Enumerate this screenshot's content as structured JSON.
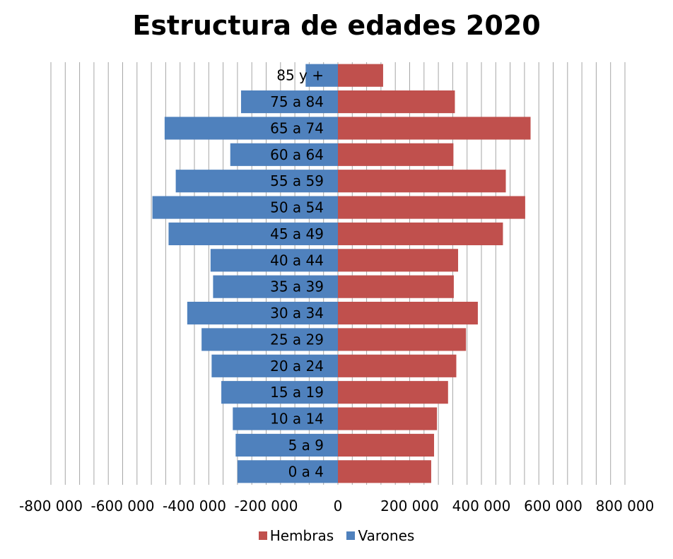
{
  "chart_data": {
    "type": "bar",
    "orientation": "horizontal",
    "title": "Estructura de edades 2020",
    "categories": [
      "0 a 4",
      "5 a 9",
      "10 a 14",
      "15 a 19",
      "20 a 24",
      "25 a 29",
      "30 a 34",
      "35 a 39",
      "40 a 44",
      "45 a 49",
      "50 a 54",
      "55 a 59",
      "60 a 64",
      "65 a 74",
      "75 a 84",
      "85 y +"
    ],
    "series": [
      {
        "name": "Varones",
        "color": "#4F81BD",
        "values": [
          -280000,
          -285000,
          -293000,
          -325000,
          -352000,
          -380000,
          -420000,
          -348000,
          -355000,
          -472000,
          -517000,
          -452000,
          -300000,
          -483000,
          -270000,
          -90000
        ]
      },
      {
        "name": "Hembras",
        "color": "#C0504D",
        "values": [
          260000,
          268000,
          276000,
          307000,
          330000,
          357000,
          390000,
          323000,
          335000,
          460000,
          522000,
          468000,
          322000,
          537000,
          326000,
          126000
        ]
      }
    ],
    "xlim": [
      -800000,
      800000
    ],
    "xticks": [
      -800000,
      -600000,
      -400000,
      -200000,
      0,
      200000,
      400000,
      600000,
      800000
    ],
    "xtick_labels": [
      "-800 000",
      "-600 000",
      "-400 000",
      "-200 000",
      "0",
      "200 000",
      "400 000",
      "600 000",
      "800 000"
    ],
    "grid": true,
    "stacked": true,
    "legend_position": "bottom",
    "legend_order": [
      "Hembras",
      "Varones"
    ]
  }
}
